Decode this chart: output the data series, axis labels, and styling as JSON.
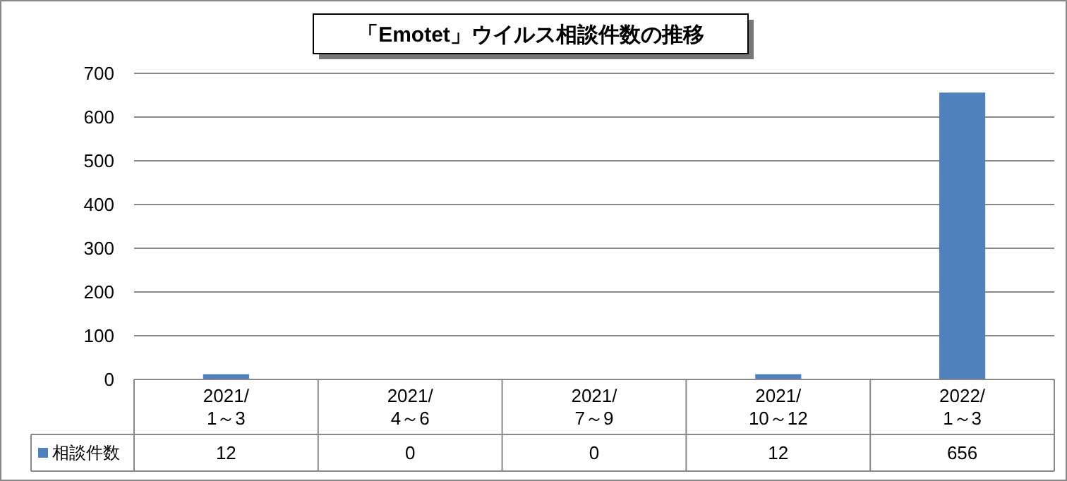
{
  "chart_data": {
    "type": "bar",
    "title": "「Emotet」ウイルス相談件数の推移",
    "categories": [
      "2021/\n1～3",
      "2021/\n4～6",
      "2021/\n7～9",
      "2021/\n10～12",
      "2022/\n1～3"
    ],
    "series": [
      {
        "name": "相談件数",
        "color": "#4f81bd",
        "values": [
          12,
          0,
          0,
          12,
          656
        ]
      }
    ],
    "ylim": [
      0,
      700
    ],
    "yticks": [
      0,
      100,
      200,
      300,
      400,
      500,
      600,
      700
    ],
    "grid": "y",
    "legend": "bottom left",
    "data_labels": true
  }
}
